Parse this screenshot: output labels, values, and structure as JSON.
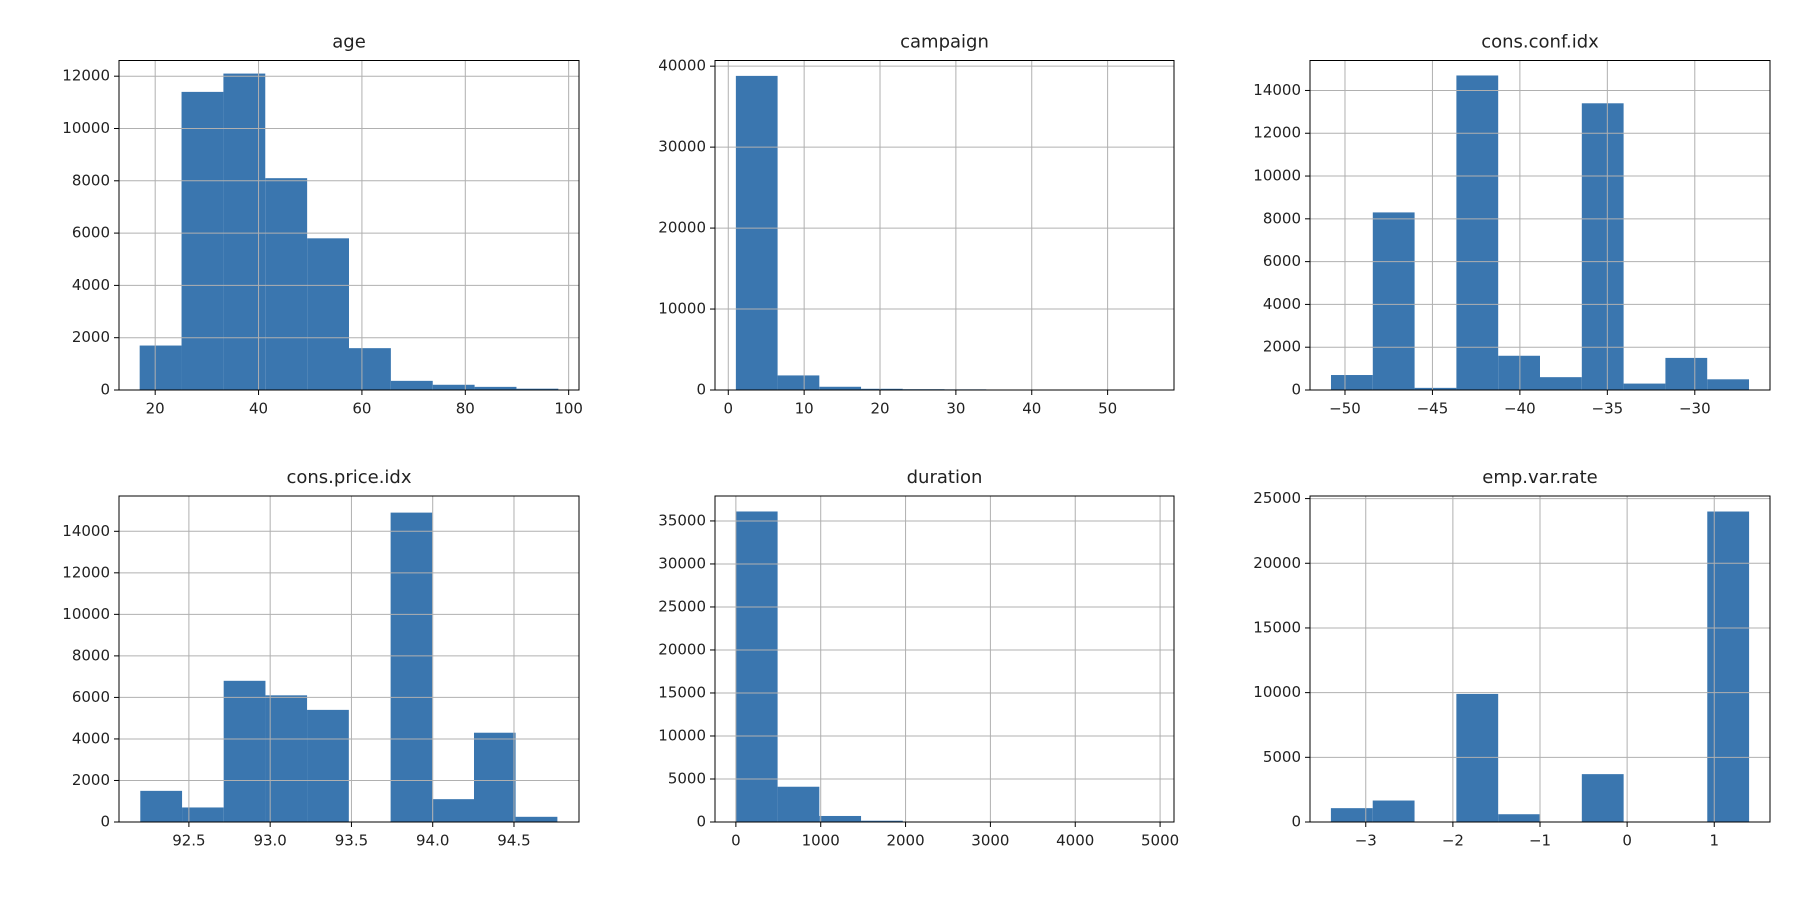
{
  "chart_data": [
    {
      "type": "histogram",
      "title": "age",
      "color": "#3a76af",
      "grid": true,
      "bins": [
        17,
        25.1,
        33.2,
        41.3,
        49.4,
        57.5,
        65.6,
        73.7,
        81.8,
        89.9,
        98
      ],
      "values": [
        1700,
        11400,
        12100,
        8100,
        5800,
        1600,
        350,
        200,
        120,
        50
      ],
      "xlim": [
        13,
        102
      ],
      "ylim": [
        0,
        12600
      ],
      "xticks": [
        20,
        40,
        60,
        80,
        100
      ],
      "yticks": [
        0,
        2000,
        4000,
        6000,
        8000,
        10000,
        12000
      ]
    },
    {
      "type": "histogram",
      "title": "campaign",
      "color": "#3a76af",
      "grid": true,
      "bins": [
        1,
        6.5,
        12,
        17.5,
        23,
        28.5,
        34,
        39.5,
        45,
        50.5,
        56
      ],
      "values": [
        38800,
        1800,
        400,
        150,
        100,
        80,
        50,
        0,
        0,
        10
      ],
      "xlim": [
        -1.75,
        58.75
      ],
      "ylim": [
        0,
        40700
      ],
      "xticks": [
        0,
        10,
        20,
        30,
        40,
        50
      ],
      "yticks": [
        0,
        10000,
        20000,
        30000,
        40000
      ]
    },
    {
      "type": "histogram",
      "title": "cons.conf.idx",
      "color": "#3a76af",
      "grid": true,
      "bins": [
        -50.8,
        -48.41,
        -46.02,
        -43.63,
        -41.24,
        -38.85,
        -36.46,
        -34.07,
        -31.68,
        -29.29,
        -26.9
      ],
      "values": [
        700,
        8300,
        100,
        14700,
        1600,
        600,
        13400,
        300,
        1500,
        500
      ],
      "xlim": [
        -52,
        -25.7
      ],
      "ylim": [
        0,
        15400
      ],
      "xticks": [
        {
          "value": -50,
          "label": "−50"
        },
        {
          "value": -45,
          "label": "−45"
        },
        {
          "value": -40,
          "label": "−40"
        },
        {
          "value": -35,
          "label": "−35"
        },
        {
          "value": -30,
          "label": "−30"
        }
      ],
      "yticks": [
        0,
        2000,
        4000,
        6000,
        8000,
        10000,
        12000,
        14000
      ]
    },
    {
      "type": "histogram",
      "title": "cons.price.idx",
      "color": "#3a76af",
      "grid": true,
      "bins": [
        92.201,
        92.458,
        92.714,
        92.971,
        93.227,
        93.484,
        93.741,
        93.997,
        94.254,
        94.51,
        94.767
      ],
      "values": [
        1500,
        700,
        6800,
        6100,
        5400,
        0,
        14900,
        1100,
        4300,
        250
      ],
      "xlim": [
        92.07,
        94.9
      ],
      "ylim": [
        0,
        15700
      ],
      "xticks": [
        92.5,
        {
          "value": 93,
          "label": "93.0"
        },
        93.5,
        {
          "value": 94,
          "label": "94.0"
        },
        94.5
      ],
      "yticks": [
        0,
        2000,
        4000,
        6000,
        8000,
        10000,
        12000,
        14000
      ]
    },
    {
      "type": "histogram",
      "title": "duration",
      "color": "#3a76af",
      "grid": true,
      "bins": [
        0,
        491.8,
        983.6,
        1475.4,
        1967.2,
        2459,
        2950.8,
        3442.6,
        3934.4,
        4426.2,
        4918
      ],
      "values": [
        36100,
        4100,
        700,
        150,
        40,
        20,
        5,
        3,
        2,
        2
      ],
      "xlim": [
        -246,
        5164
      ],
      "ylim": [
        0,
        37900
      ],
      "xticks": [
        0,
        1000,
        2000,
        3000,
        4000,
        5000
      ],
      "yticks": [
        0,
        5000,
        10000,
        15000,
        20000,
        25000,
        30000,
        35000
      ]
    },
    {
      "type": "histogram",
      "title": "emp.var.rate",
      "color": "#3a76af",
      "grid": true,
      "bins": [
        -3.4,
        -2.92,
        -2.44,
        -1.96,
        -1.48,
        -1.0,
        -0.52,
        -0.04,
        0.44,
        0.92,
        1.4
      ],
      "values": [
        1070,
        1660,
        0,
        9900,
        600,
        0,
        3700,
        0,
        0,
        24000
      ],
      "xlim": [
        -3.64,
        1.64
      ],
      "ylim": [
        0,
        25200
      ],
      "xticks": [
        {
          "value": -3,
          "label": "−3"
        },
        {
          "value": -2,
          "label": "−2"
        },
        {
          "value": -1,
          "label": "−1"
        },
        0,
        1
      ],
      "yticks": [
        0,
        5000,
        10000,
        15000,
        20000,
        25000
      ]
    }
  ]
}
